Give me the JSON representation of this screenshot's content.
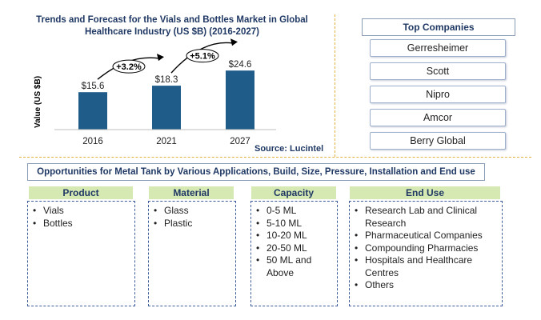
{
  "chart_data": {
    "type": "bar",
    "title": "Trends and Forecast for the Vials and Bottles Market in Global Healthcare Industry (US $B) (2016-2027)",
    "ylabel": "Value (US $B)",
    "categories": [
      "2016",
      "2021",
      "2027"
    ],
    "values": [
      15.6,
      18.3,
      24.6
    ],
    "value_labels": [
      "$15.6",
      "$18.3",
      "$24.6"
    ],
    "bar_color": "#1f5c8a",
    "growth_annotations": [
      "+3.2%",
      "+5.1%"
    ],
    "grid": false,
    "source": "Source: Lucintel"
  },
  "top_companies": {
    "header": "Top Companies",
    "items": [
      "Gerresheimer",
      "Scott",
      "Nipro",
      "Amcor",
      "Berry Global"
    ]
  },
  "opportunities": {
    "title": "Opportunities for Metal Tank by Various Applications, Build, Size, Pressure, Installation and End use",
    "columns": [
      {
        "header": "Product",
        "items": [
          "Vials",
          "Bottles"
        ]
      },
      {
        "header": "Material",
        "items": [
          "Glass",
          "Plastic"
        ]
      },
      {
        "header": "Capacity",
        "items": [
          "0-5 ML",
          "5-10 ML",
          "10-20 ML",
          "20-50 ML",
          "50 ML and Above"
        ]
      },
      {
        "header": "End Use",
        "items": [
          "Research Lab and Clinical Research",
          "Pharmaceutical Companies",
          "Compounding Pharmacies",
          "Hospitals and Healthcare Centres",
          "Others"
        ]
      }
    ]
  },
  "colors": {
    "accent": "#1f3864",
    "header_fill": "#d6e9b3",
    "separator": "#e3b341"
  }
}
